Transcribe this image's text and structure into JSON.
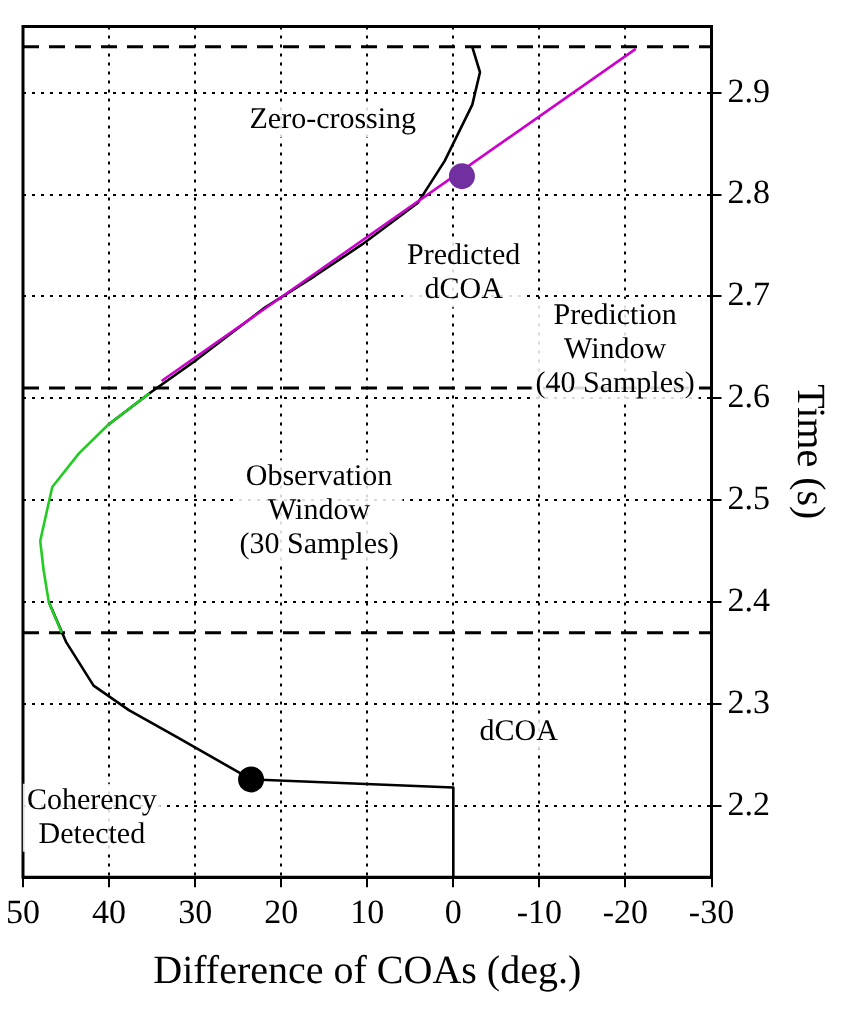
{
  "chart_data": {
    "type": "line",
    "xlabel": "Difference of COAs (deg.)",
    "ylabel": "Time (s)",
    "xlim": [
      50,
      -30
    ],
    "xticks": [
      50,
      40,
      30,
      20,
      10,
      0,
      -10,
      -20,
      -30
    ],
    "ylim": [
      2.13,
      2.965
    ],
    "yticks": [
      2.2,
      2.3,
      2.4,
      2.5,
      2.6,
      2.7,
      2.8,
      2.9
    ],
    "grid": true,
    "legend": false,
    "marker": "none",
    "line_style": "solid",
    "series": [
      {
        "color": "#000000",
        "values": [
          2.13,
          2.218,
          2.226,
          2.267,
          2.294,
          2.318,
          2.361,
          2.4,
          null,
          null,
          null,
          null,
          2.574,
          2.605,
          2.638,
          2.689,
          2.72,
          2.751,
          2.792,
          2.833,
          2.888,
          2.92,
          2.945
        ],
        "x": [
          0,
          0,
          23.5,
          32,
          37.7,
          41.8,
          45,
          47,
          null,
          null,
          null,
          null,
          40.1,
          35.3,
          29.8,
          21.9,
          16.1,
          10.6,
          4.1,
          1,
          -2.2,
          -3.1,
          -2.2
        ]
      },
      {
        "color": "#22cc22",
        "values": [
          2.37,
          2.4,
          2.431,
          2.46,
          2.513,
          2.546,
          2.574,
          2.605
        ],
        "x": [
          45.5,
          47,
          47.6,
          48,
          46.6,
          43.5,
          40.1,
          35.3
        ]
      },
      {
        "color": "#cc00cc",
        "values": [
          2.617,
          2.943
        ],
        "x": [
          33.9,
          -21.2
        ]
      },
      {
        "type": "scatter",
        "marker": "circle",
        "color": "#000000",
        "values": [
          2.226
        ],
        "x": [
          23.5
        ]
      },
      {
        "type": "scatter",
        "marker": "circle",
        "color": "#7030a0",
        "values": [
          2.818
        ],
        "x": [
          -1
        ]
      }
    ],
    "ref_lines": [
      {
        "axis": "y",
        "value": 2.37,
        "line_style": "dashed",
        "color": "#000000"
      },
      {
        "axis": "y",
        "value": 2.61,
        "line_style": "dashed",
        "color": "#000000"
      },
      {
        "axis": "y",
        "value": 2.945,
        "line_style": "dashed",
        "color": "#000000"
      }
    ],
    "annotations": [
      "Coherency\nDetected",
      "dCOA",
      "Observation\nWindow\n(30 Samples)",
      "Zero-crossing",
      "Predicted\ndCOA",
      "Prediction\nWindow\n(40 Samples)"
    ]
  }
}
